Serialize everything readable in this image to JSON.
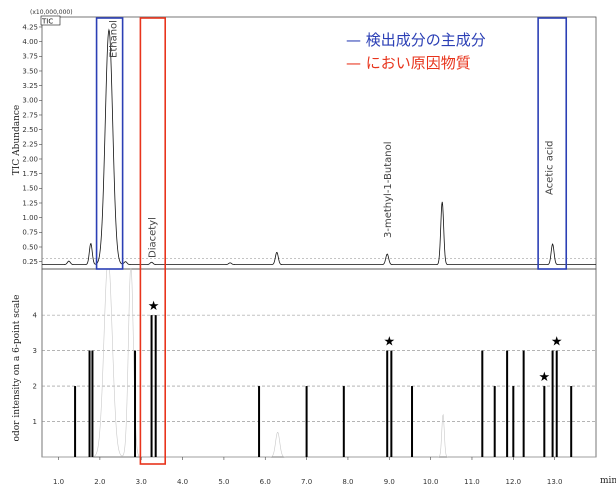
{
  "chart_data": [
    {
      "type": "line",
      "title": "",
      "scale_note": "(x10,000,000)",
      "series_tag": "TIC",
      "ylabel": "TIC Abundance",
      "y_ticks": [
        "0.25",
        "0.50",
        "0.75",
        "1.00",
        "1.25",
        "1.50",
        "1.75",
        "2.00",
        "2.25",
        "2.50",
        "2.75",
        "3.00",
        "3.25",
        "3.50",
        "3.75",
        "4.00",
        "4.25"
      ],
      "ylim": [
        0.125,
        4.42
      ],
      "xlim": [
        0.6,
        14.0
      ],
      "baseline": 0.2,
      "peaks": [
        {
          "x": 1.25,
          "y": 0.26
        },
        {
          "x": 1.78,
          "y": 0.56
        },
        {
          "x": 2.22,
          "y": 4.2
        },
        {
          "x": 2.62,
          "y": 0.25
        },
        {
          "x": 3.25,
          "y": 0.24
        },
        {
          "x": 5.15,
          "y": 0.23
        },
        {
          "x": 6.28,
          "y": 0.41
        },
        {
          "x": 8.95,
          "y": 0.38
        },
        {
          "x": 10.28,
          "y": 1.27
        },
        {
          "x": 12.95,
          "y": 0.55
        }
      ],
      "peak_labels": [
        {
          "text": "Ethanol",
          "x": 2.3
        },
        {
          "text": "Diacetyl",
          "x": 3.25
        },
        {
          "text": "3-methyl-1-Butanol",
          "x": 8.95
        },
        {
          "text": "Acetic acid",
          "x": 12.85
        }
      ],
      "legend": [
        {
          "label": "— 検出成分の主成分",
          "color": "#2b3fb5"
        },
        {
          "label": "— におい原因物質",
          "color": "#e8341c"
        }
      ]
    },
    {
      "type": "bar",
      "title": "",
      "ylabel": "odor intensity on a 6-point scale",
      "xlabel": "min",
      "x_ticks": [
        "1.0",
        "2.0",
        "3.0",
        "4.0",
        "5.0",
        "6.0",
        "7.0",
        "8.0",
        "9.0",
        "10.0",
        "11.0",
        "12.0",
        "13.0"
      ],
      "y_ticks": [
        "1",
        "2",
        "3",
        "4"
      ],
      "ylim": [
        0,
        5.3
      ],
      "xlim": [
        0.6,
        14.0
      ],
      "bars": [
        {
          "x": 1.4,
          "value": 2
        },
        {
          "x": 1.75,
          "value": 3
        },
        {
          "x": 1.82,
          "value": 3
        },
        {
          "x": 2.85,
          "value": 3
        },
        {
          "x": 3.25,
          "value": 4
        },
        {
          "x": 3.35,
          "value": 4
        },
        {
          "x": 5.85,
          "value": 2
        },
        {
          "x": 7.0,
          "value": 2
        },
        {
          "x": 7.9,
          "value": 2
        },
        {
          "x": 8.95,
          "value": 3
        },
        {
          "x": 9.05,
          "value": 3
        },
        {
          "x": 9.55,
          "value": 2
        },
        {
          "x": 11.25,
          "value": 3
        },
        {
          "x": 11.55,
          "value": 2
        },
        {
          "x": 11.85,
          "value": 3
        },
        {
          "x": 12.0,
          "value": 2
        },
        {
          "x": 12.25,
          "value": 3
        },
        {
          "x": 12.75,
          "value": 2
        },
        {
          "x": 12.95,
          "value": 3
        },
        {
          "x": 13.05,
          "value": 3
        },
        {
          "x": 13.4,
          "value": 2
        }
      ],
      "stars": [
        {
          "x": 3.3,
          "value": 4
        },
        {
          "x": 9.0,
          "value": 3
        },
        {
          "x": 12.75,
          "value": 2
        },
        {
          "x": 13.05,
          "value": 3
        }
      ],
      "star_symbol": "★"
    }
  ],
  "colors": {
    "highlight_main": "#2b3fb5",
    "highlight_odor": "#e8341c",
    "grid": "#888888",
    "trace": "#111111"
  }
}
